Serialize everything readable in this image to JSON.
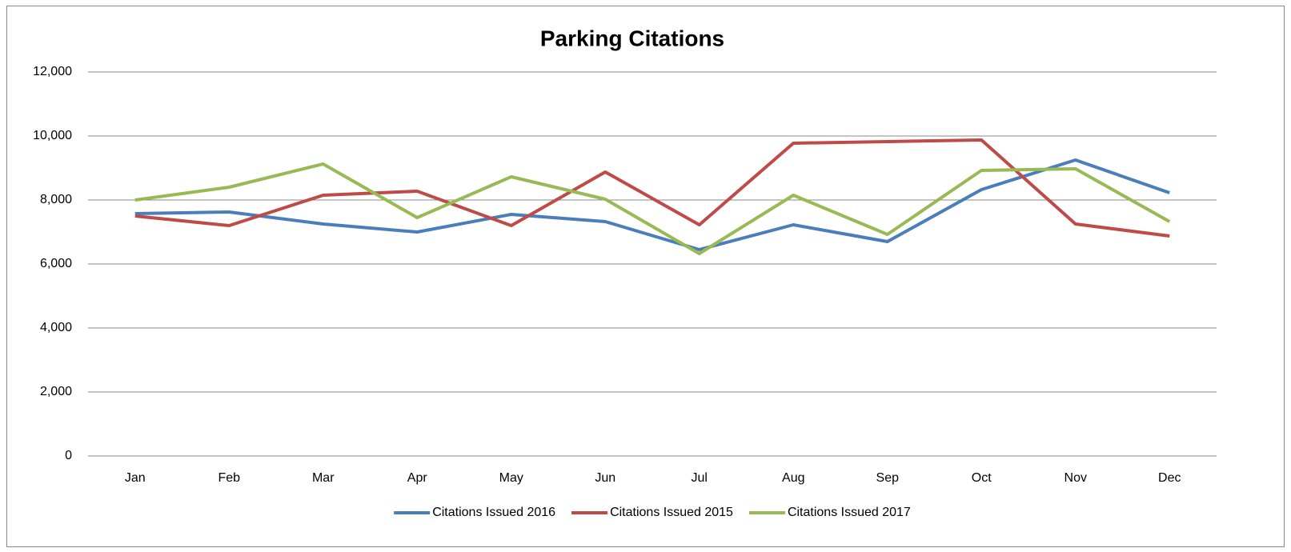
{
  "chart_data": {
    "type": "line",
    "title": "Parking Citations",
    "categories": [
      "Jan",
      "Feb",
      "Mar",
      "Apr",
      "May",
      "Jun",
      "Jul",
      "Aug",
      "Sep",
      "Oct",
      "Nov",
      "Dec"
    ],
    "series": [
      {
        "name": "Citations Issued 2016",
        "color": "#4a7ebb",
        "values": [
          7575,
          7625,
          7250,
          7000,
          7550,
          7325,
          6450,
          7225,
          6700,
          8325,
          9250,
          8225
        ]
      },
      {
        "name": "Citations Issued 2015",
        "color": "#be4b48",
        "values": [
          7500,
          7200,
          8150,
          8275,
          7200,
          8875,
          7225,
          9775,
          9825,
          9875,
          7250,
          6875
        ]
      },
      {
        "name": "Citations Issued 2017",
        "color": "#98b954",
        "values": [
          8000,
          8400,
          9125,
          7450,
          8725,
          8025,
          6325,
          8150,
          6925,
          8925,
          8975,
          7325
        ]
      }
    ],
    "ylim": [
      0,
      12000
    ],
    "yticks": [
      0,
      {
        "value": 2000,
        "label": "2,000"
      },
      {
        "value": 4000,
        "label": "4,000"
      },
      {
        "value": 6000,
        "label": "6,000"
      },
      {
        "value": 8000,
        "label": "8,000"
      },
      {
        "value": 10000,
        "label": "10,000"
      },
      {
        "value": 12000,
        "label": "12,000"
      }
    ],
    "grid": true,
    "legend": "bottom"
  }
}
